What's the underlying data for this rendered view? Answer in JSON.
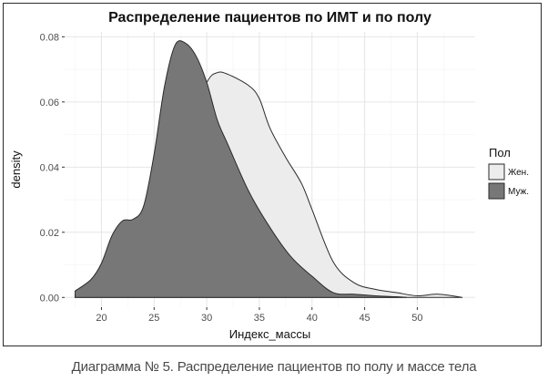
{
  "chart_data": {
    "type": "area",
    "title": "Распределение пациентов по ИМТ и по полу",
    "xlabel": "Индекс_массы",
    "ylabel": "density",
    "xlim": [
      16.5,
      55.5
    ],
    "ylim": [
      -0.003,
      0.0815
    ],
    "x_ticks": [
      20,
      25,
      30,
      35,
      40,
      45,
      50
    ],
    "x_tick_labels": [
      "20",
      "25",
      "30",
      "35",
      "40",
      "45",
      "50"
    ],
    "y_ticks": [
      0.0,
      0.02,
      0.04,
      0.06,
      0.08
    ],
    "y_tick_labels": [
      "0.00",
      "0.02",
      "0.04",
      "0.06",
      "0.08"
    ],
    "grid": true,
    "legend_title": "Пол",
    "legend_position": "right",
    "series": [
      {
        "name": "Жен.",
        "color": "#ececec",
        "x": [
          17.5,
          19,
          21,
          22,
          24,
          26,
          28,
          30,
          31,
          32,
          34,
          35,
          36,
          37.5,
          39,
          40,
          42,
          44,
          46,
          48,
          50,
          52,
          54.3
        ],
        "y": [
          0.0008,
          0.0028,
          0.0085,
          0.013,
          0.025,
          0.037,
          0.052,
          0.066,
          0.069,
          0.0685,
          0.065,
          0.061,
          0.052,
          0.043,
          0.035,
          0.027,
          0.011,
          0.0045,
          0.0025,
          0.0015,
          0.0005,
          0.001,
          0.0
        ]
      },
      {
        "name": "Муж.",
        "color": "#777777",
        "x": [
          17.5,
          19,
          20,
          21,
          22,
          23,
          24,
          25,
          26,
          27,
          28,
          29,
          30,
          31,
          32,
          34,
          36,
          38,
          40,
          42,
          44,
          46,
          48,
          49
        ],
        "y": [
          0.002,
          0.0055,
          0.0105,
          0.019,
          0.0235,
          0.024,
          0.028,
          0.044,
          0.065,
          0.0775,
          0.078,
          0.074,
          0.066,
          0.0545,
          0.047,
          0.0325,
          0.0215,
          0.0125,
          0.0065,
          0.0015,
          0.001,
          0.0005,
          0.0002,
          0.0
        ]
      }
    ]
  },
  "caption": "Диаграмма № 5. Распределение пациентов по полу и массе тела"
}
